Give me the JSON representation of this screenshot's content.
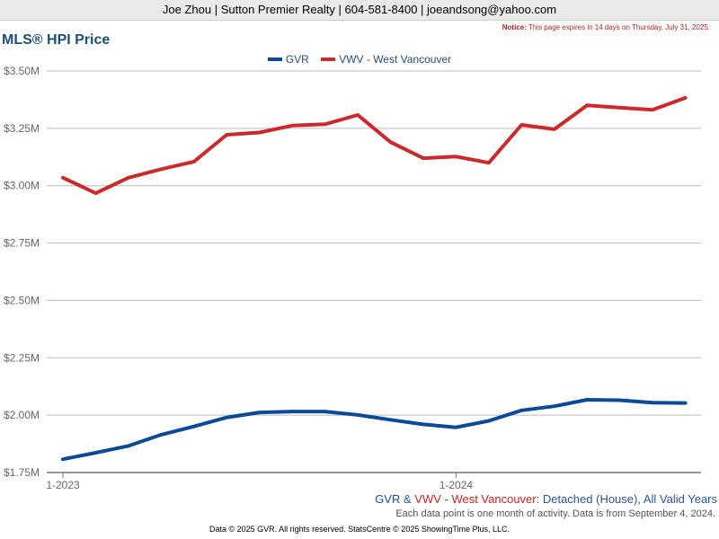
{
  "header": {
    "text": "Joe Zhou | Sutton Premier Realty | 604-581-8400 | joeandsong@yahoo.com"
  },
  "notice": {
    "label": "Notice:",
    "text": "This page expires in 14 days on Thursday, July 31, 2025."
  },
  "colors": {
    "gvr": "#0b4a99",
    "vwv": "#cc2a2a",
    "grid": "#bbbbbb",
    "axis": "#777777",
    "tick_text": "#666666"
  },
  "chart_data": {
    "type": "line",
    "title": "MLS® HPI Price",
    "x": [
      "2023-01",
      "2023-02",
      "2023-03",
      "2023-04",
      "2023-05",
      "2023-06",
      "2023-07",
      "2023-08",
      "2023-09",
      "2023-10",
      "2023-11",
      "2023-12",
      "2024-01",
      "2024-02",
      "2024-03",
      "2024-04",
      "2024-05",
      "2024-06",
      "2024-07",
      "2024-08"
    ],
    "x_tick_labels": [
      {
        "x": "2023-01",
        "label": "1-2023"
      },
      {
        "x": "2024-01",
        "label": "1-2024"
      }
    ],
    "ylim": [
      1.75,
      3.5
    ],
    "y_ticks": [
      {
        "value": 3.5,
        "label": "$3.50M"
      },
      {
        "value": 3.25,
        "label": "$3.25M"
      },
      {
        "value": 3.0,
        "label": "$3.00M"
      },
      {
        "value": 2.75,
        "label": "$2.75M"
      },
      {
        "value": 2.5,
        "label": "$2.50M"
      },
      {
        "value": 2.25,
        "label": "$2.25M"
      },
      {
        "value": 2.0,
        "label": "$2.00M"
      },
      {
        "value": 1.75,
        "label": "$1.75M"
      }
    ],
    "grid": true,
    "legend_position": "top-center",
    "series": [
      {
        "name": "GVR",
        "color": "#0b4a99",
        "values": [
          1.808,
          1.836,
          1.866,
          1.915,
          1.951,
          1.99,
          2.012,
          2.016,
          2.016,
          2.001,
          1.98,
          1.96,
          1.947,
          1.975,
          2.021,
          2.039,
          2.067,
          2.065,
          2.054,
          2.053
        ]
      },
      {
        "name": "VWV - West Vancouver",
        "color": "#cc2a2a",
        "values": [
          3.035,
          2.967,
          3.035,
          3.072,
          3.105,
          3.222,
          3.232,
          3.262,
          3.268,
          3.308,
          3.19,
          3.12,
          3.127,
          3.1,
          3.265,
          3.246,
          3.35,
          3.34,
          3.331,
          3.383
        ]
      }
    ]
  },
  "caption": {
    "gvr": "GVR",
    "amp": "&",
    "vwv": "VWV - West Vancouver",
    "rest": ": Detached (House), All Valid Years",
    "subtext": "Each data point is one month of activity. Data is from September 4, 2024."
  },
  "footer": {
    "text": "Data © 2025 GVR. All rights reserved. StatsCentre © 2025 ShowingTime Plus, LLC."
  }
}
